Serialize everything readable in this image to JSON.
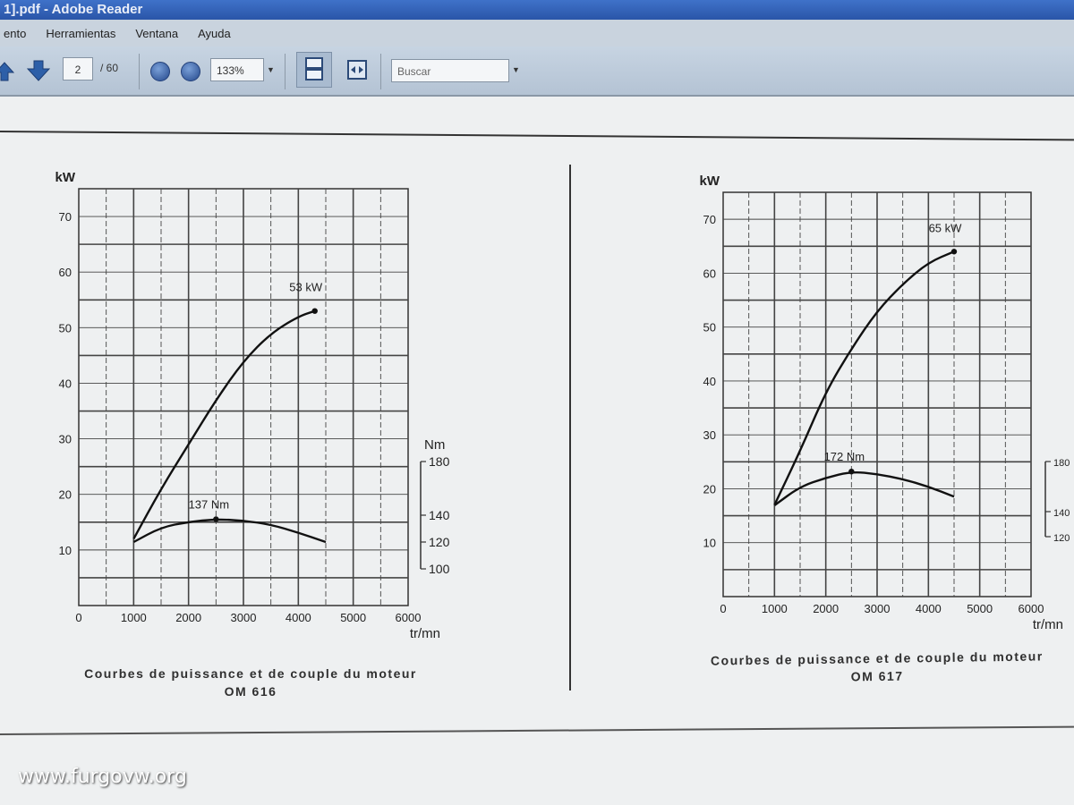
{
  "window": {
    "title": "1].pdf - Adobe Reader"
  },
  "menu": {
    "items": [
      "ento",
      "Herramientas",
      "Ventana",
      "Ayuda"
    ]
  },
  "toolbar": {
    "page_current": "2",
    "page_total": "/ 60",
    "zoom": "133%",
    "search_placeholder": "Buscar"
  },
  "document": {
    "left_caption": [
      "Courbes de puissance et de couple du moteur",
      "OM 616"
    ],
    "right_caption": [
      "Courbes de puissance et de couple du moteur",
      "OM 617"
    ]
  },
  "watermark": "www.furgovw.org",
  "chart_data": [
    {
      "type": "line",
      "title": "",
      "xlabel": "tr/mn",
      "ylabel": "kW",
      "y2label": "Nm",
      "xlim": [
        0,
        6000
      ],
      "ylim": [
        0,
        75
      ],
      "y2lim": [
        100,
        180
      ],
      "x_ticks": [
        0,
        1000,
        2000,
        3000,
        4000,
        5000,
        6000
      ],
      "y_ticks": [
        10,
        20,
        30,
        40,
        50,
        60,
        70
      ],
      "y2_ticks": [
        100,
        120,
        140,
        180
      ],
      "grid": true,
      "series": [
        {
          "axis": "kW",
          "x": [
            1000,
            1500,
            2000,
            2500,
            3000,
            3500,
            4000,
            4300
          ],
          "y": [
            12,
            21,
            29,
            37,
            44,
            49,
            52,
            53
          ],
          "label": "53 kW"
        },
        {
          "axis": "Nm",
          "x": [
            1000,
            1500,
            2000,
            2500,
            3000,
            3500,
            4000,
            4500
          ],
          "y": [
            120,
            131,
            135,
            137,
            136,
            133,
            127,
            120
          ],
          "label": "137 Nm"
        }
      ]
    },
    {
      "type": "line",
      "title": "",
      "xlabel": "tr/mn",
      "ylabel": "kW",
      "y2label": "",
      "xlim": [
        0,
        6000
      ],
      "ylim": [
        0,
        75
      ],
      "y2lim": [
        120,
        180
      ],
      "x_ticks": [
        0,
        1000,
        2000,
        3000,
        4000,
        5000,
        6000
      ],
      "y_ticks": [
        10,
        20,
        30,
        40,
        50,
        60,
        70
      ],
      "y2_ticks": [
        120,
        140,
        180
      ],
      "grid": true,
      "series": [
        {
          "axis": "kW",
          "x": [
            1000,
            1500,
            2000,
            2500,
            3000,
            3500,
            4000,
            4500
          ],
          "y": [
            17,
            27,
            38,
            46,
            53,
            58,
            62,
            64
          ],
          "label": "65 kW"
        },
        {
          "axis": "Nm",
          "x": [
            1000,
            1500,
            2000,
            2500,
            3000,
            3500,
            4000,
            4500
          ],
          "y": [
            145,
            160,
            167,
            172,
            170,
            166,
            160,
            152
          ],
          "label": "172 Nm"
        }
      ]
    }
  ]
}
